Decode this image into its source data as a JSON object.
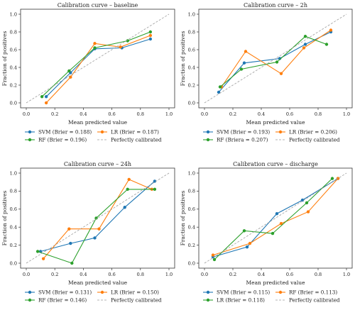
{
  "chart_data": [
    {
      "type": "line",
      "title": "Calibration curve – baseline",
      "xlabel": "Mean predicted value",
      "ylabel": "Fraction of positives",
      "xlim": [
        0,
        1
      ],
      "ylim": [
        0,
        1
      ],
      "xticks": [
        "0.0",
        "0.2",
        "0.4",
        "0.6",
        "0.8",
        "1.0"
      ],
      "yticks": [
        "0.0",
        "0.2",
        "0.4",
        "0.6",
        "0.8",
        "1.0"
      ],
      "grid": false,
      "legend_placement": "bottom",
      "series": [
        {
          "name": "SVM (Brier = 0.188)",
          "color": "#1f77b4",
          "x": [
            0.14,
            0.31,
            0.48,
            0.67,
            0.87
          ],
          "y": [
            0.07,
            0.34,
            0.61,
            0.62,
            0.72
          ]
        },
        {
          "name": "LR (Brier = 0.187)",
          "color": "#ff7f0e",
          "x": [
            0.14,
            0.31,
            0.48,
            0.66,
            0.87
          ],
          "y": [
            0.0,
            0.29,
            0.67,
            0.63,
            0.76
          ]
        },
        {
          "name": "RF (Brier = 0.196)",
          "color": "#2ca02c",
          "x": [
            0.11,
            0.3,
            0.48,
            0.71,
            0.87
          ],
          "y": [
            0.07,
            0.36,
            0.62,
            0.7,
            0.8
          ]
        },
        {
          "name": "Perfectly calibrated",
          "color": "#9e9e9e",
          "dashed": true,
          "x": [
            0,
            1
          ],
          "y": [
            0,
            1
          ]
        }
      ]
    },
    {
      "type": "line",
      "title": "Calibration curve – 2h",
      "xlabel": "Mean predicted value",
      "ylabel": "Fraction of positives",
      "xlim": [
        0,
        1
      ],
      "ylim": [
        0,
        1
      ],
      "xticks": [
        "0.0",
        "0.2",
        "0.4",
        "0.6",
        "0.8",
        "1.0"
      ],
      "yticks": [
        "0.0",
        "0.2",
        "0.4",
        "0.6",
        "0.8",
        "1.0"
      ],
      "grid": false,
      "legend_placement": "bottom",
      "series": [
        {
          "name": "SVM (Brier = 0.193)",
          "color": "#1f77b4",
          "x": [
            0.1,
            0.28,
            0.53,
            0.71,
            0.89
          ],
          "y": [
            0.12,
            0.45,
            0.5,
            0.66,
            0.8
          ]
        },
        {
          "name": "LR (Brier = 0.206)",
          "color": "#ff7f0e",
          "x": [
            0.12,
            0.29,
            0.54,
            0.7,
            0.89
          ],
          "y": [
            0.18,
            0.58,
            0.33,
            0.62,
            0.82
          ]
        },
        {
          "name": "RF (Briera = 0.207)",
          "color": "#2ca02c",
          "x": [
            0.11,
            0.26,
            0.51,
            0.71,
            0.86
          ],
          "y": [
            0.18,
            0.38,
            0.46,
            0.75,
            0.66
          ]
        },
        {
          "name": "Perfectly calibrated",
          "color": "#9e9e9e",
          "dashed": true,
          "x": [
            0,
            1
          ],
          "y": [
            0,
            1
          ]
        }
      ]
    },
    {
      "type": "line",
      "title": "Calibration curve – 24h",
      "xlabel": "Mean predicted value",
      "ylabel": "Fraction of positives",
      "xlim": [
        0,
        1
      ],
      "ylim": [
        0,
        1
      ],
      "xticks": [
        "0.0",
        "0.2",
        "0.4",
        "0.6",
        "0.8",
        "1.0"
      ],
      "yticks": [
        "0.0",
        "0.2",
        "0.4",
        "0.6",
        "0.8",
        "1.0"
      ],
      "grid": false,
      "legend_placement": "bottom",
      "series": [
        {
          "name": "SVM (Brier = 0.131)",
          "color": "#1f77b4",
          "x": [
            0.1,
            0.31,
            0.48,
            0.69,
            0.9
          ],
          "y": [
            0.13,
            0.22,
            0.28,
            0.62,
            0.91
          ]
        },
        {
          "name": "LR (Brier = 0.150)",
          "color": "#ff7f0e",
          "x": [
            0.12,
            0.3,
            0.51,
            0.72,
            0.88
          ],
          "y": [
            0.05,
            0.38,
            0.38,
            0.93,
            0.82
          ]
        },
        {
          "name": "RF (Brier = 0.146)",
          "color": "#2ca02c",
          "x": [
            0.08,
            0.32,
            0.49,
            0.71,
            0.9
          ],
          "y": [
            0.13,
            0.0,
            0.5,
            0.82,
            0.82
          ]
        },
        {
          "name": "Perfectly calibrated",
          "color": "#9e9e9e",
          "dashed": true,
          "x": [
            0,
            1
          ],
          "y": [
            0,
            1
          ]
        }
      ]
    },
    {
      "type": "line",
      "title": "Calibration curve – discharge",
      "xlabel": "Mean predicted value",
      "ylabel": "Fraction of positives",
      "xlim": [
        0,
        1
      ],
      "ylim": [
        0,
        1
      ],
      "xticks": [
        "0.0",
        "0.2",
        "0.4",
        "0.6",
        "0.8",
        "1.0"
      ],
      "yticks": [
        "0.0",
        "0.2",
        "0.4",
        "0.6",
        "0.8",
        "1.0"
      ],
      "grid": false,
      "legend_placement": "bottom",
      "series": [
        {
          "name": "SVM (Brier = 0.115)",
          "color": "#1f77b4",
          "x": [
            0.06,
            0.3,
            0.51,
            0.69,
            0.94
          ],
          "y": [
            0.07,
            0.18,
            0.55,
            0.7,
            0.94
          ]
        },
        {
          "name": "RF (Brier = 0.113)",
          "color": "#ff7f0e",
          "x": [
            0.06,
            0.32,
            0.54,
            0.73,
            0.94
          ],
          "y": [
            0.09,
            0.22,
            0.44,
            0.57,
            0.94
          ]
        },
        {
          "name": "LR (Brier = 0.118)",
          "color": "#2ca02c",
          "x": [
            0.07,
            0.28,
            0.48,
            0.72,
            0.9
          ],
          "y": [
            0.04,
            0.36,
            0.33,
            0.67,
            0.94
          ]
        },
        {
          "name": "Perfectly calibrated",
          "color": "#9e9e9e",
          "dashed": true,
          "x": [
            0,
            1
          ],
          "y": [
            0,
            1
          ]
        }
      ]
    }
  ]
}
